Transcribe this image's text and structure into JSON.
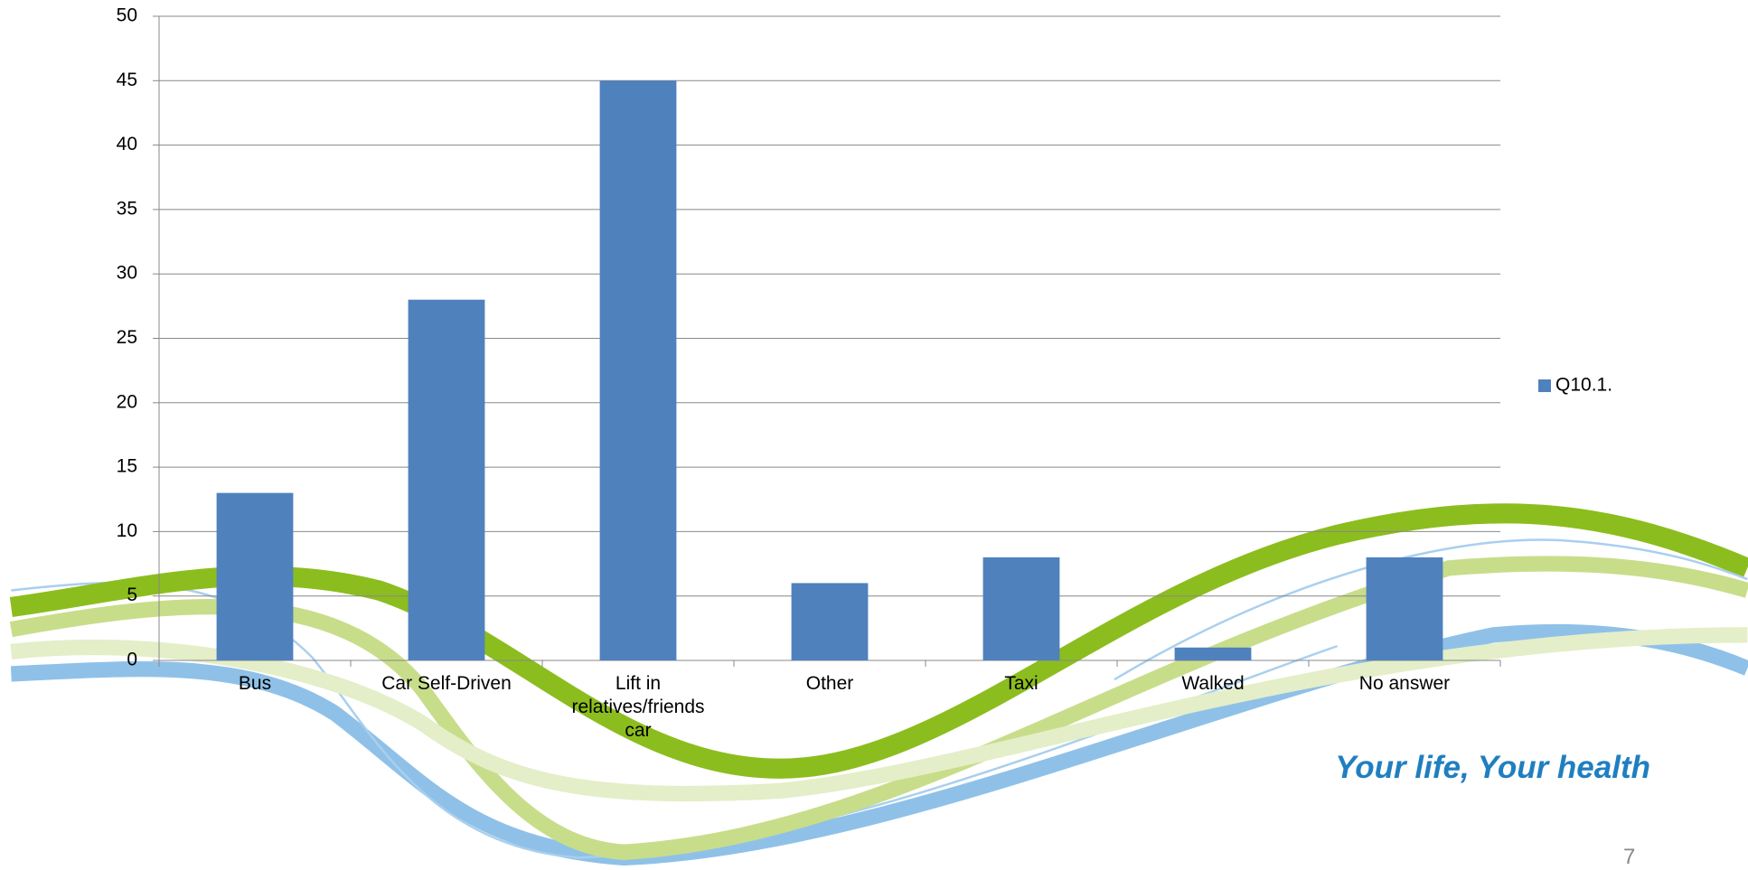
{
  "chart_data": {
    "type": "bar",
    "categories": [
      "Bus",
      "Car Self-Driven",
      "Lift in relatives/friends car",
      "Other",
      "Taxi",
      "Walked",
      "No answer"
    ],
    "series": [
      {
        "name": "Q10.1.",
        "color": "#4f81bd",
        "values": [
          13,
          28,
          45,
          6,
          8,
          1,
          8
        ]
      }
    ],
    "ylim": [
      0,
      50
    ],
    "yticks": [
      0,
      5,
      10,
      15,
      20,
      25,
      30,
      35,
      40,
      45,
      50
    ],
    "grid": true,
    "legend": "right"
  },
  "footer": {
    "slogan": "Your life, Your health",
    "page_number": "7"
  }
}
